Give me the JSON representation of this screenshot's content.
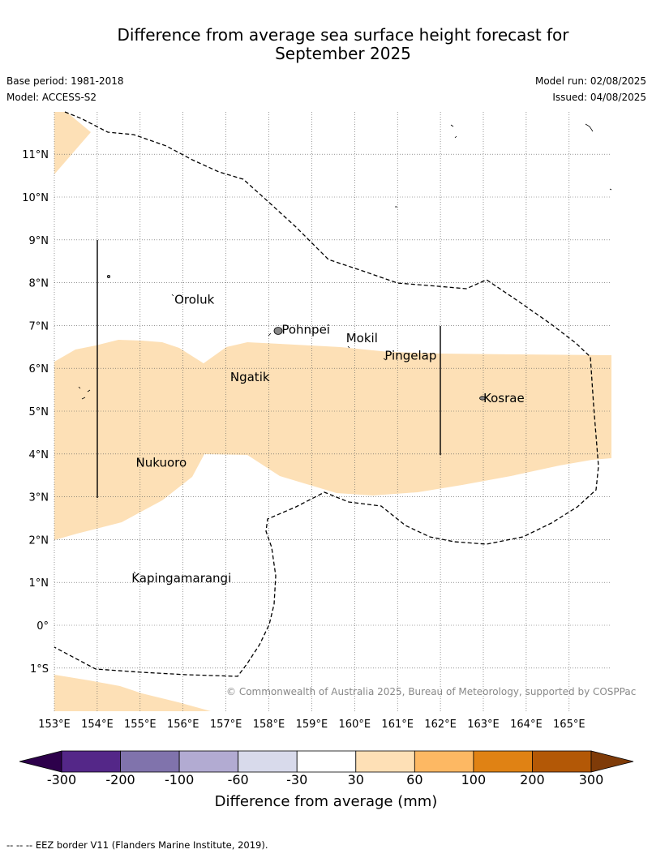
{
  "title_line1": "Difference from average sea surface height forecast for",
  "title_line2": "September 2025",
  "base_period": "Base period: 1981-2018",
  "model": "Model: ACCESS-S2",
  "model_run": "Model run: 02/08/2025",
  "issued": "Issued: 04/08/2025",
  "copyright": "© Commonwealth of Australia 2025, Bureau of Meteorology, supported by COSPPac",
  "map": {
    "lon_range": [
      153,
      166
    ],
    "lat_range": [
      -2,
      12
    ],
    "lon_ticks": [
      "153°E",
      "154°E",
      "155°E",
      "156°E",
      "157°E",
      "158°E",
      "159°E",
      "160°E",
      "161°E",
      "162°E",
      "163°E",
      "164°E",
      "165°E"
    ],
    "lat_ticks": [
      "11°N",
      "10°N",
      "9°N",
      "8°N",
      "7°N",
      "6°N",
      "5°N",
      "4°N",
      "3°N",
      "2°N",
      "1°N",
      "0°",
      "1°S"
    ],
    "places": [
      {
        "name": "Oroluk",
        "lon": 155.8,
        "lat": 7.6
      },
      {
        "name": "Pohnpei",
        "lon": 158.3,
        "lat": 6.9
      },
      {
        "name": "Mokil",
        "lon": 159.8,
        "lat": 6.7
      },
      {
        "name": "Pingelap",
        "lon": 160.7,
        "lat": 6.3
      },
      {
        "name": "Ngatik",
        "lon": 157.1,
        "lat": 5.8
      },
      {
        "name": "Kosrae",
        "lon": 163.0,
        "lat": 5.3
      },
      {
        "name": "Nukuoro",
        "lon": 154.9,
        "lat": 3.8
      },
      {
        "name": "Kapingamarangi",
        "lon": 154.8,
        "lat": 1.1
      }
    ],
    "shaded_color": "#fde0b6"
  },
  "colorbar": {
    "title": "Difference from average (mm)",
    "labels": [
      "-300",
      "-200",
      "-100",
      "-60",
      "-30",
      "30",
      "60",
      "100",
      "200",
      "300"
    ],
    "colors": [
      "#2d004b",
      "#542788",
      "#8073ac",
      "#b2abd2",
      "#d8daeb",
      "#ffffff",
      "#fee0b6",
      "#fdb863",
      "#e08214",
      "#b35806",
      "#7f3b08"
    ]
  },
  "footer": "--  --  -- EEZ border V11 (Flanders Marine Institute, 2019)."
}
